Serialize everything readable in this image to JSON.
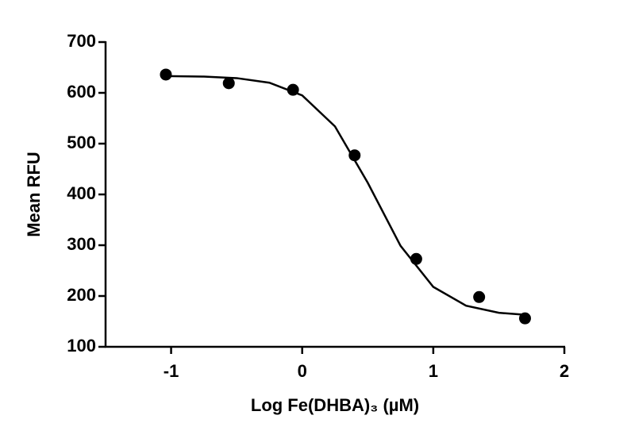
{
  "chart_data": {
    "type": "scatter",
    "xlabel": "Log Fe(DHBA)₃ (µM)",
    "ylabel": "Mean RFU",
    "x": [
      -1.04,
      -0.56,
      -0.07,
      0.4,
      0.87,
      1.35,
      1.7
    ],
    "values": [
      636,
      619,
      606,
      477,
      273,
      198,
      156
    ],
    "color": "#000000",
    "curve": {
      "x": [
        -1.04,
        -0.75,
        -0.5,
        -0.25,
        0,
        0.25,
        0.5,
        0.75,
        1.0,
        1.25,
        1.5,
        1.7
      ],
      "values": [
        633,
        632,
        629,
        620,
        595,
        534,
        423,
        299,
        218,
        181,
        167,
        163
      ]
    },
    "xlim": [
      -1.5,
      2
    ],
    "xticks": [
      -1,
      0,
      1,
      2
    ],
    "ylim": [
      100,
      700
    ],
    "yticks": [
      100,
      200,
      300,
      400,
      500,
      600,
      700
    ]
  }
}
